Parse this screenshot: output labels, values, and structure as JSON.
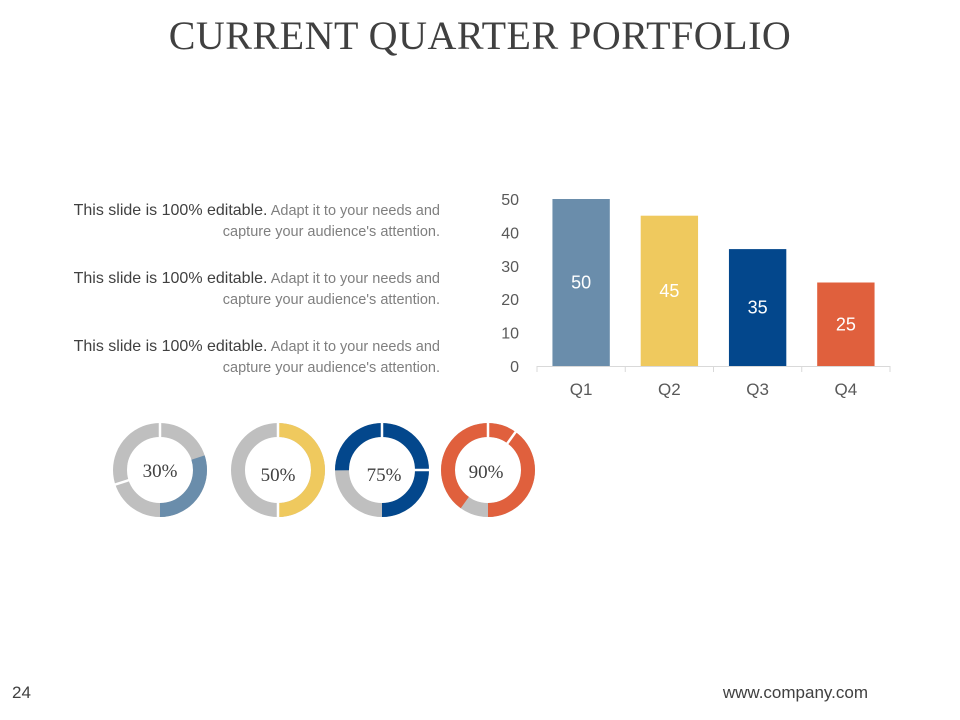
{
  "slide": {
    "title": "CURRENT QUARTER PORTFOLIO",
    "page_number": "24",
    "website": "www.company.com"
  },
  "blurbs": [
    {
      "lead": "This slide is 100% editable.",
      "rest": " Adapt it to your needs and capture your audience's attention."
    },
    {
      "lead": "This slide is 100% editable.",
      "rest": " Adapt it to your needs and capture your audience's attention."
    },
    {
      "lead": "This slide is 100% editable.",
      "rest": " Adapt it to your needs and capture your audience's attention."
    }
  ],
  "donuts": [
    {
      "label": "30%",
      "value": 30,
      "color": "#6a8dab",
      "track": "#bfbfbf"
    },
    {
      "label": "50%",
      "value": 50,
      "color": "#efc95e",
      "track": "#bfbfbf"
    },
    {
      "label": "75%",
      "value": 75,
      "color": "#03478c",
      "track": "#bfbfbf"
    },
    {
      "label": "90%",
      "value": 90,
      "color": "#e0603d",
      "track": "#bfbfbf"
    }
  ],
  "chart_data": {
    "type": "bar",
    "title": "",
    "xlabel": "",
    "ylabel": "",
    "categories": [
      "Q1",
      "Q2",
      "Q3",
      "Q4"
    ],
    "values": [
      50,
      45,
      35,
      25
    ],
    "data_labels": [
      "50",
      "45",
      "35",
      "25"
    ],
    "colors": [
      "#6a8dab",
      "#efc95e",
      "#03478c",
      "#e0603d"
    ],
    "y_ticks": [
      0,
      10,
      20,
      30,
      40,
      50
    ],
    "ylim": [
      0,
      50
    ],
    "grid": false,
    "legend": "none"
  }
}
